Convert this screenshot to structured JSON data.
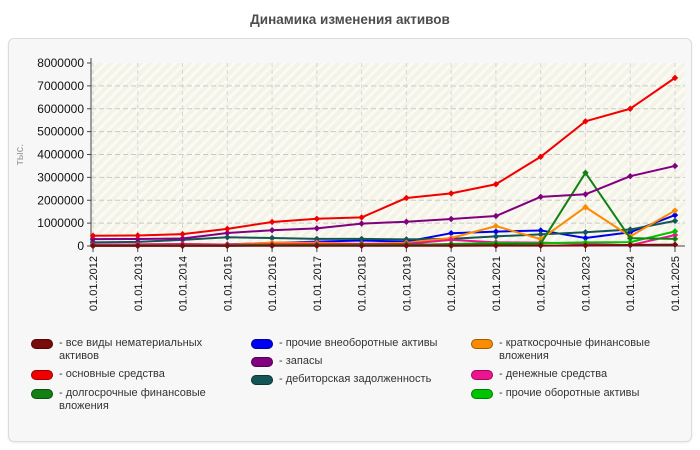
{
  "title": "Динамика изменения активов",
  "legend_separator": "-",
  "colors": {
    "panel_bg": "#f7f7f7",
    "panel_border": "#dcdcdc",
    "plot_bg": "#f4f3e8",
    "plot_hatch": "#fbfaf3",
    "hgrid": "#c9c9c9",
    "vgrid": "#d6d6d6",
    "axis": "#444444",
    "tick_label": "#111111",
    "axis_title": "#999999",
    "title_color": "#4d4d4d",
    "legend_text": "#333333"
  },
  "chart_data": {
    "type": "line",
    "title": "Динамика изменения активов",
    "xlabel": "",
    "ylabel": "тыс.",
    "ylim": [
      0,
      8000000
    ],
    "y_tick_step": 1000000,
    "grid": true,
    "legend_position": "bottom",
    "categories": [
      "01.01.2012",
      "01.01.2013",
      "01.01.2014",
      "01.01.2015",
      "01.01.2016",
      "01.01.2017",
      "01.01.2018",
      "01.01.2019",
      "01.01.2020",
      "01.01.2021",
      "01.01.2022",
      "01.01.2023",
      "01.01.2024",
      "01.01.2025"
    ],
    "series": [
      {
        "name": "все виды нематериальных активов",
        "color": "#7a0b0b",
        "values": [
          5000,
          5000,
          6000,
          8000,
          9000,
          10000,
          10000,
          12000,
          13000,
          15000,
          18000,
          22000,
          45000,
          60000
        ]
      },
      {
        "name": "основные средства",
        "color": "#f20000",
        "values": [
          450000,
          460000,
          520000,
          750000,
          1050000,
          1190000,
          1250000,
          2100000,
          2300000,
          2700000,
          3900000,
          5450000,
          6000000,
          7350000
        ]
      },
      {
        "name": "долгосрочные финансовые вложения",
        "color": "#128012",
        "values": [
          20000,
          22000,
          25000,
          30000,
          40000,
          45000,
          55000,
          60000,
          70000,
          80000,
          100000,
          3200000,
          340000,
          310000
        ]
      },
      {
        "name": "прочие внеоборотные активы",
        "color": "#0000f0",
        "values": [
          30000,
          40000,
          55000,
          70000,
          130000,
          190000,
          240000,
          190000,
          560000,
          630000,
          680000,
          350000,
          600000,
          1350000
        ]
      },
      {
        "name": "запасы",
        "color": "#800080",
        "values": [
          300000,
          305000,
          330000,
          570000,
          690000,
          770000,
          980000,
          1060000,
          1180000,
          1310000,
          2150000,
          2260000,
          3050000,
          3500000
        ]
      },
      {
        "name": "дебиторская задолженность",
        "color": "#145555",
        "values": [
          160000,
          180000,
          270000,
          380000,
          350000,
          310000,
          310000,
          290000,
          310000,
          420000,
          510000,
          600000,
          720000,
          1100000
        ]
      },
      {
        "name": "краткосрочные финансовые вложения",
        "color": "#fb8b00",
        "values": [
          40000,
          70000,
          90000,
          60000,
          150000,
          140000,
          100000,
          140000,
          350000,
          870000,
          300000,
          1700000,
          420000,
          1550000
        ]
      },
      {
        "name": "денежные средства",
        "color": "#f01390",
        "values": [
          60000,
          70000,
          85000,
          60000,
          70000,
          80000,
          85000,
          95000,
          270000,
          160000,
          150000,
          100000,
          35000,
          480000
        ]
      },
      {
        "name": "прочие оборотные активы",
        "color": "#00c400",
        "values": [
          10000,
          15000,
          20000,
          20000,
          28000,
          30000,
          38000,
          42000,
          90000,
          130000,
          120000,
          160000,
          170000,
          640000
        ]
      }
    ]
  }
}
